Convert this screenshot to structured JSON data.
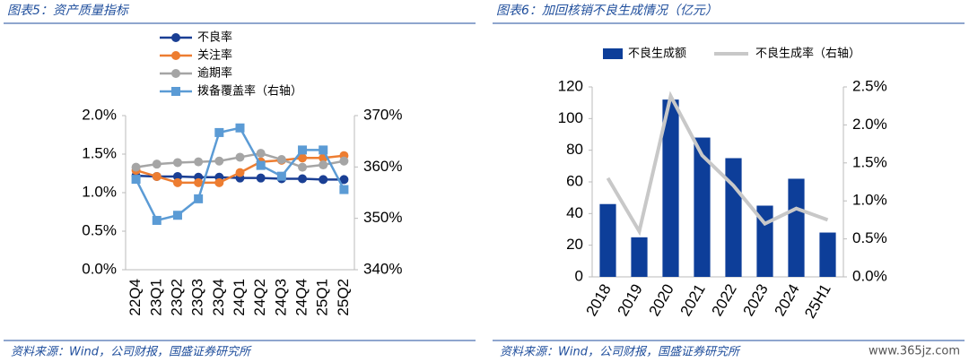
{
  "watermark": "www.365jz.com",
  "chart_data": [
    {
      "type": "line",
      "title": "图表5：资产质量指标",
      "source": "资料来源：Wind，公司财报，国盛证券研究所",
      "categories": [
        "22Q4",
        "23Q1",
        "23Q2",
        "23Q3",
        "23Q4",
        "24Q1",
        "24Q2",
        "24Q3",
        "24Q4",
        "25Q1",
        "25Q2"
      ],
      "ylim": [
        0,
        2.0
      ],
      "yticks": [
        {
          "value": 0,
          "label": "0.0%"
        },
        {
          "value": 0.5,
          "label": "0.5%"
        },
        {
          "value": 1.0,
          "label": "1.0%"
        },
        {
          "value": 1.5,
          "label": "1.5%"
        },
        {
          "value": 2.0,
          "label": "2.0%"
        }
      ],
      "y2lim": [
        340,
        370
      ],
      "y2ticks": [
        {
          "value": 340,
          "label": "340%"
        },
        {
          "value": 350,
          "label": "350%"
        },
        {
          "value": 360,
          "label": "360%"
        },
        {
          "value": 370,
          "label": "370%"
        }
      ],
      "legend": "top-left",
      "series": [
        {
          "name": "不良率",
          "color": "#1a3f94",
          "marker": "circle",
          "values": [
            1.22,
            1.21,
            1.21,
            1.2,
            1.2,
            1.19,
            1.19,
            1.18,
            1.18,
            1.17,
            1.17
          ]
        },
        {
          "name": "关注率",
          "color": "#ed7d31",
          "marker": "circle",
          "values": [
            1.29,
            1.21,
            1.13,
            1.13,
            1.13,
            1.26,
            1.4,
            1.42,
            1.45,
            1.45,
            1.48
          ]
        },
        {
          "name": "逾期率",
          "color": "#a5a5a5",
          "marker": "circle",
          "values": [
            1.33,
            1.37,
            1.39,
            1.4,
            1.41,
            1.46,
            1.51,
            1.43,
            1.33,
            1.36,
            1.41
          ]
        },
        {
          "name": "拨备覆盖率（右轴）",
          "color": "#5b9bd5",
          "marker": "square",
          "axis": "y2",
          "values": [
            357.6,
            349.6,
            350.6,
            353.8,
            366.7,
            367.6,
            360.3,
            358.2,
            363.3,
            363.3,
            355.6
          ]
        }
      ]
    },
    {
      "type": "bar",
      "title": "图表6：加回核销不良生成情况（亿元）",
      "source": "资料来源：Wind，公司财报，国盛证券研究所",
      "categories": [
        "2018",
        "2019",
        "2020",
        "2021",
        "2022",
        "2023",
        "2024",
        "25H1"
      ],
      "ylim": [
        0,
        120
      ],
      "yticks": [
        0,
        20,
        40,
        60,
        80,
        100,
        120
      ],
      "y2lim": [
        0,
        2.5
      ],
      "y2ticks": [
        {
          "value": 0,
          "label": "0.0%"
        },
        {
          "value": 0.5,
          "label": "0.5%"
        },
        {
          "value": 1.0,
          "label": "1.0%"
        },
        {
          "value": 1.5,
          "label": "1.5%"
        },
        {
          "value": 2.0,
          "label": "2.0%"
        },
        {
          "value": 2.5,
          "label": "2.5%"
        }
      ],
      "legend": "top",
      "series": [
        {
          "name": "不良生成额",
          "type": "bar",
          "color": "#0d3e99",
          "values": [
            46,
            25,
            112,
            88,
            75,
            45,
            62,
            28
          ]
        },
        {
          "name": "不良生成率（右轴）",
          "type": "line",
          "color": "#c8c8c8",
          "axis": "y2",
          "values": [
            1.3,
            0.6,
            2.38,
            1.6,
            1.2,
            0.7,
            0.9,
            0.75
          ]
        }
      ]
    }
  ]
}
